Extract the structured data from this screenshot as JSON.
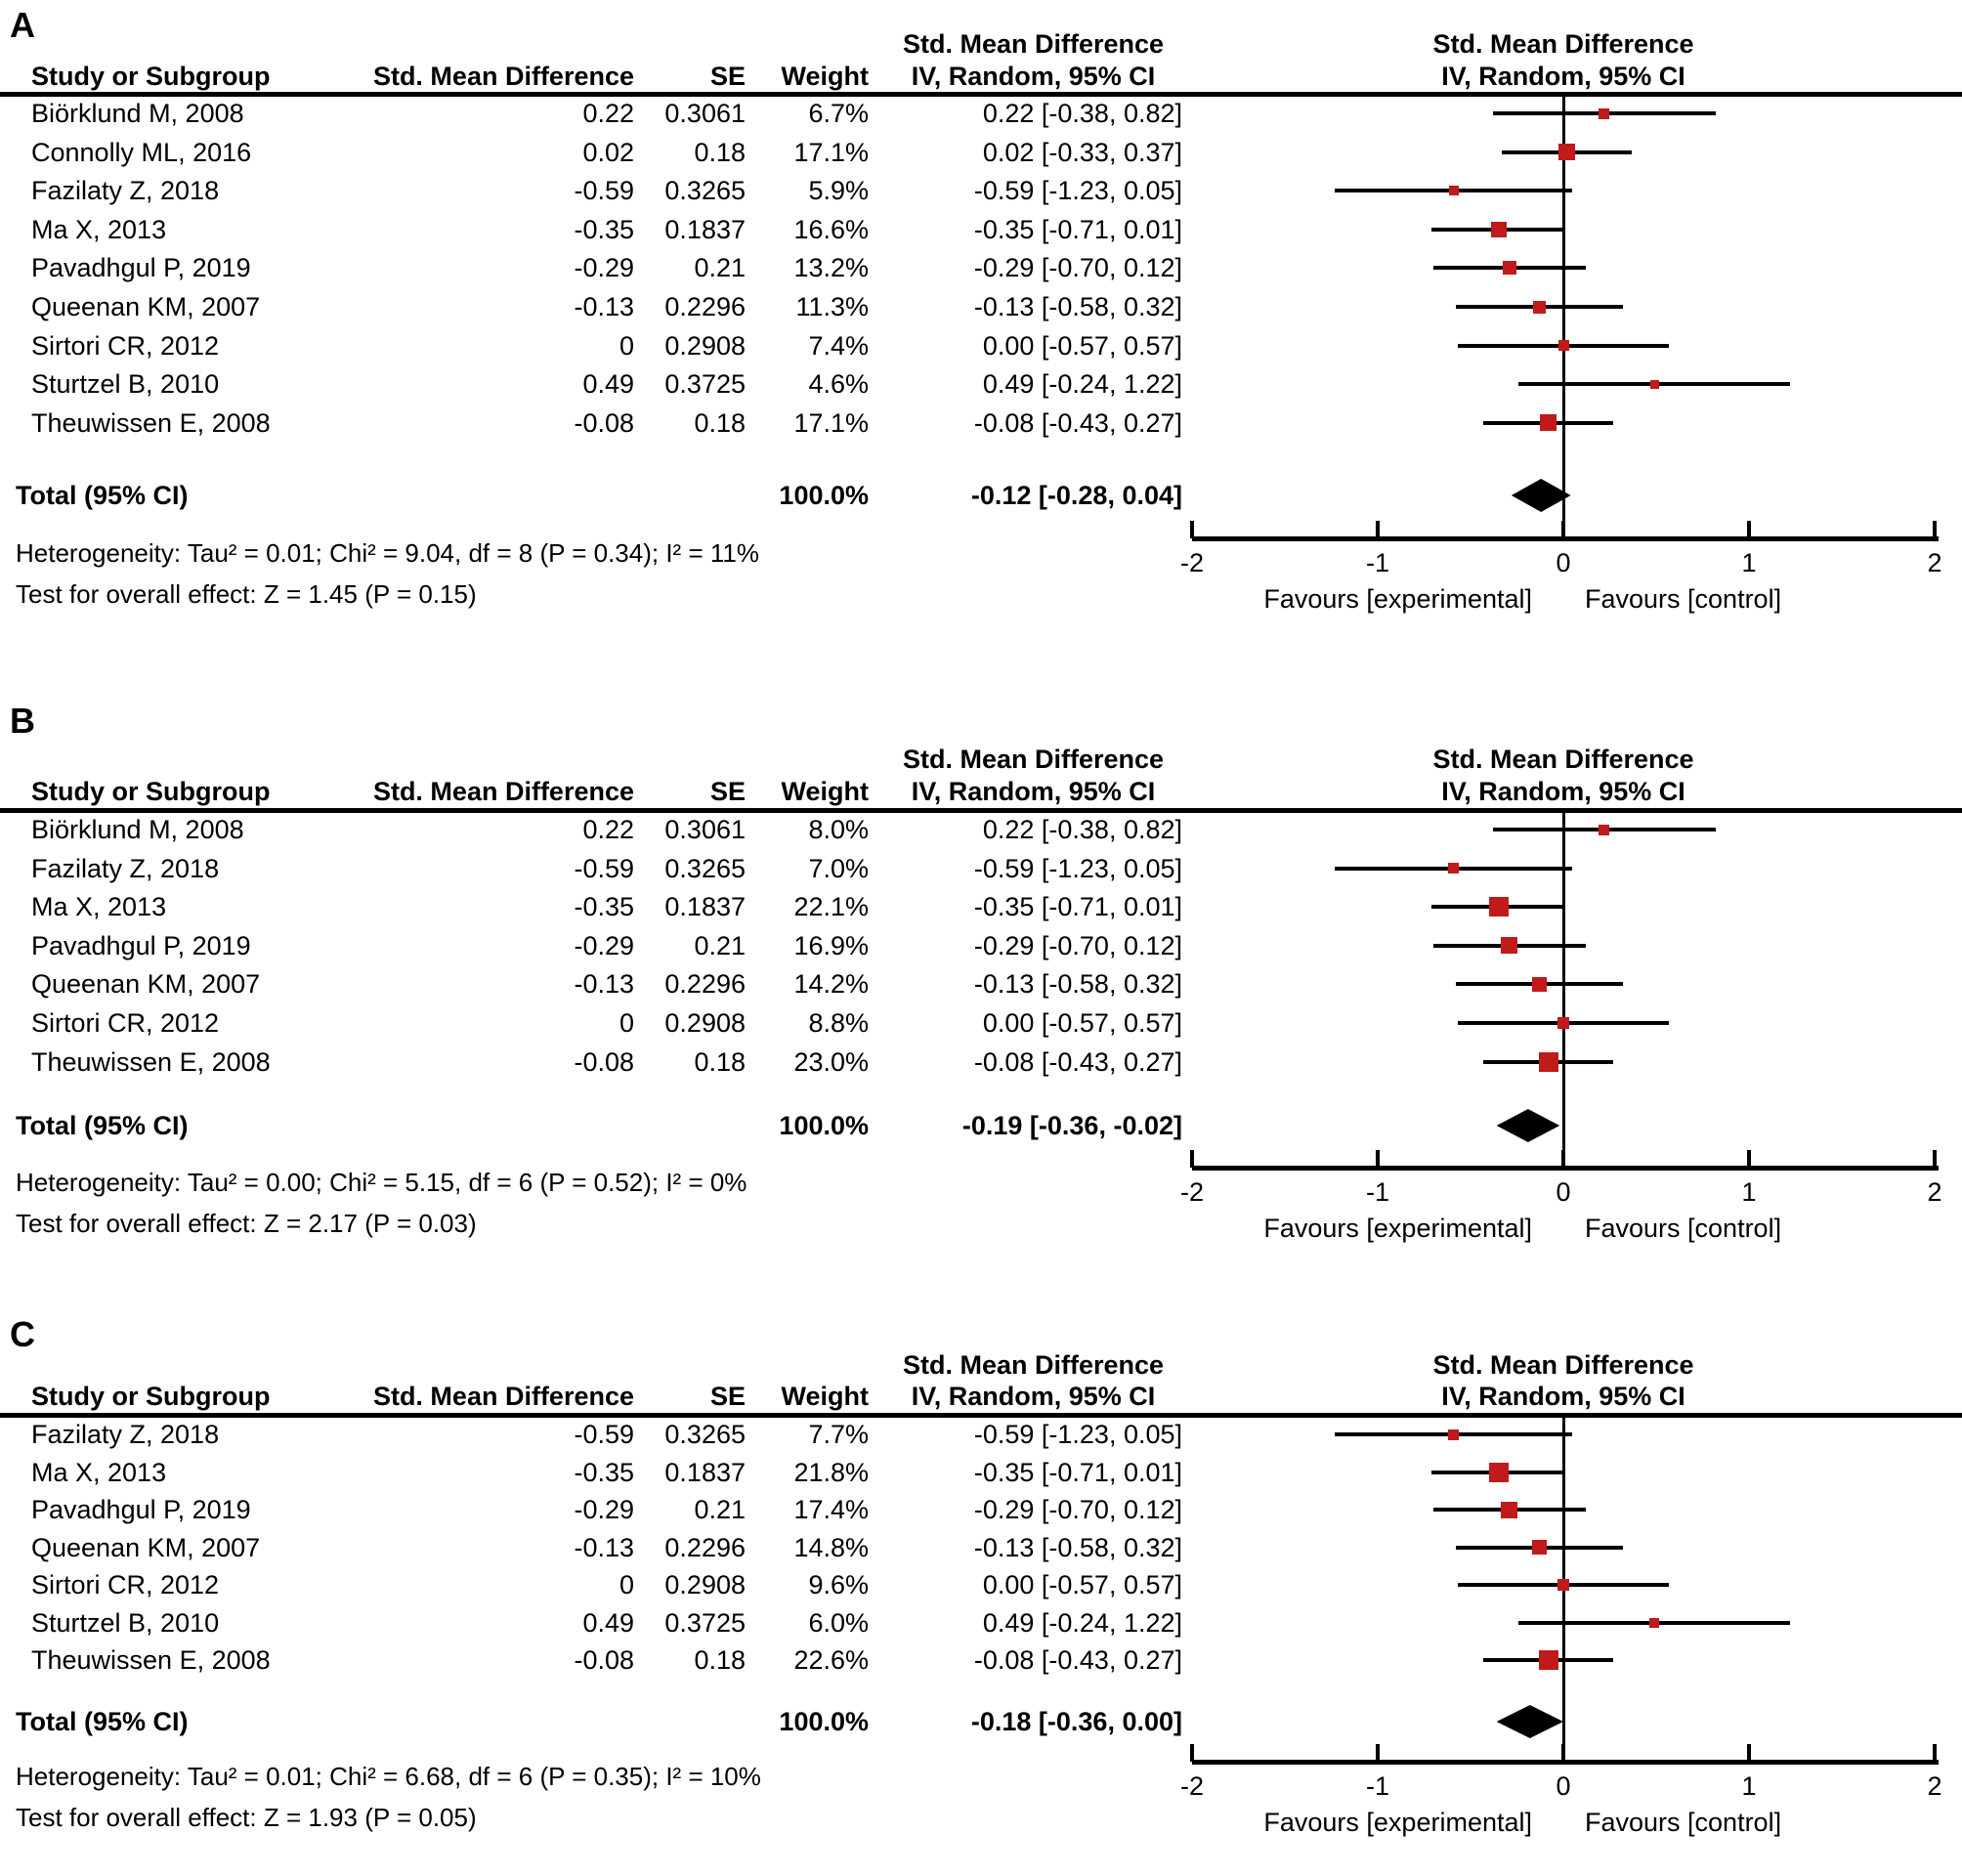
{
  "figure": {
    "marker_color": "#c01a1a",
    "summary_color": "#000000"
  },
  "chart_data": {
    "type": "forest",
    "x_axis": {
      "xlim": [
        -2,
        2
      ],
      "ticks": [
        -2,
        -1,
        0,
        1,
        2
      ],
      "tick_labels": [
        "-2",
        "-1",
        "0",
        "1",
        "2"
      ],
      "favours_left": "Favours [experimental]",
      "favours_right": "Favours [control]"
    },
    "columns": [
      "Study or Subgroup",
      "Std. Mean Difference",
      "SE",
      "Weight",
      "IV, Random, 95% CI"
    ],
    "graph_header_line1": "Std. Mean Difference",
    "graph_header_line2": "IV, Random, 95% CI",
    "panels": [
      {
        "label": "A",
        "studies": [
          {
            "name": "Biörklund M, 2008",
            "smd": "0.22",
            "se": "0.3061",
            "weight": "6.7%",
            "weight_pct": 6.7,
            "ci_text": "0.22 [-0.38, 0.82]",
            "est": 0.22,
            "lower": -0.38,
            "upper": 0.82
          },
          {
            "name": "Connolly ML, 2016",
            "smd": "0.02",
            "se": "0.18",
            "weight": "17.1%",
            "weight_pct": 17.1,
            "ci_text": "0.02 [-0.33, 0.37]",
            "est": 0.02,
            "lower": -0.33,
            "upper": 0.37
          },
          {
            "name": "Fazilaty Z, 2018",
            "smd": "-0.59",
            "se": "0.3265",
            "weight": "5.9%",
            "weight_pct": 5.9,
            "ci_text": "-0.59 [-1.23, 0.05]",
            "est": -0.59,
            "lower": -1.23,
            "upper": 0.05
          },
          {
            "name": "Ma X, 2013",
            "smd": "-0.35",
            "se": "0.1837",
            "weight": "16.6%",
            "weight_pct": 16.6,
            "ci_text": "-0.35 [-0.71, 0.01]",
            "est": -0.35,
            "lower": -0.71,
            "upper": 0.01
          },
          {
            "name": "Pavadhgul P, 2019",
            "smd": "-0.29",
            "se": "0.21",
            "weight": "13.2%",
            "weight_pct": 13.2,
            "ci_text": "-0.29 [-0.70, 0.12]",
            "est": -0.29,
            "lower": -0.7,
            "upper": 0.12
          },
          {
            "name": "Queenan KM, 2007",
            "smd": "-0.13",
            "se": "0.2296",
            "weight": "11.3%",
            "weight_pct": 11.3,
            "ci_text": "-0.13 [-0.58, 0.32]",
            "est": -0.13,
            "lower": -0.58,
            "upper": 0.32
          },
          {
            "name": "Sirtori CR, 2012",
            "smd": "0",
            "se": "0.2908",
            "weight": "7.4%",
            "weight_pct": 7.4,
            "ci_text": "0.00 [-0.57, 0.57]",
            "est": 0.0,
            "lower": -0.57,
            "upper": 0.57
          },
          {
            "name": "Sturtzel B, 2010",
            "smd": "0.49",
            "se": "0.3725",
            "weight": "4.6%",
            "weight_pct": 4.6,
            "ci_text": "0.49 [-0.24, 1.22]",
            "est": 0.49,
            "lower": -0.24,
            "upper": 1.22
          },
          {
            "name": "Theuwissen E, 2008",
            "smd": "-0.08",
            "se": "0.18",
            "weight": "17.1%",
            "weight_pct": 17.1,
            "ci_text": "-0.08 [-0.43, 0.27]",
            "est": -0.08,
            "lower": -0.43,
            "upper": 0.27
          }
        ],
        "total": {
          "label": "Total (95% CI)",
          "weight": "100.0%",
          "ci_text": "-0.12 [-0.28, 0.04]",
          "est": -0.12,
          "lower": -0.28,
          "upper": 0.04
        },
        "heterogeneity": "Heterogeneity: Tau² = 0.01; Chi² = 9.04, df = 8 (P = 0.34); I² = 11%",
        "overall_test": "Test for overall effect: Z = 1.45 (P = 0.15)"
      },
      {
        "label": "B",
        "studies": [
          {
            "name": "Biörklund M, 2008",
            "smd": "0.22",
            "se": "0.3061",
            "weight": "8.0%",
            "weight_pct": 8.0,
            "ci_text": "0.22 [-0.38, 0.82]",
            "est": 0.22,
            "lower": -0.38,
            "upper": 0.82
          },
          {
            "name": "Fazilaty Z, 2018",
            "smd": "-0.59",
            "se": "0.3265",
            "weight": "7.0%",
            "weight_pct": 7.0,
            "ci_text": "-0.59 [-1.23, 0.05]",
            "est": -0.59,
            "lower": -1.23,
            "upper": 0.05
          },
          {
            "name": "Ma X, 2013",
            "smd": "-0.35",
            "se": "0.1837",
            "weight": "22.1%",
            "weight_pct": 22.1,
            "ci_text": "-0.35 [-0.71, 0.01]",
            "est": -0.35,
            "lower": -0.71,
            "upper": 0.01
          },
          {
            "name": "Pavadhgul P, 2019",
            "smd": "-0.29",
            "se": "0.21",
            "weight": "16.9%",
            "weight_pct": 16.9,
            "ci_text": "-0.29 [-0.70, 0.12]",
            "est": -0.29,
            "lower": -0.7,
            "upper": 0.12
          },
          {
            "name": "Queenan KM, 2007",
            "smd": "-0.13",
            "se": "0.2296",
            "weight": "14.2%",
            "weight_pct": 14.2,
            "ci_text": "-0.13 [-0.58, 0.32]",
            "est": -0.13,
            "lower": -0.58,
            "upper": 0.32
          },
          {
            "name": "Sirtori CR, 2012",
            "smd": "0",
            "se": "0.2908",
            "weight": "8.8%",
            "weight_pct": 8.8,
            "ci_text": "0.00 [-0.57, 0.57]",
            "est": 0.0,
            "lower": -0.57,
            "upper": 0.57
          },
          {
            "name": "Theuwissen E, 2008",
            "smd": "-0.08",
            "se": "0.18",
            "weight": "23.0%",
            "weight_pct": 23.0,
            "ci_text": "-0.08 [-0.43, 0.27]",
            "est": -0.08,
            "lower": -0.43,
            "upper": 0.27
          }
        ],
        "total": {
          "label": "Total (95% CI)",
          "weight": "100.0%",
          "ci_text": "-0.19 [-0.36, -0.02]",
          "est": -0.19,
          "lower": -0.36,
          "upper": -0.02
        },
        "heterogeneity": "Heterogeneity: Tau² = 0.00; Chi² = 5.15, df = 6 (P = 0.52); I² = 0%",
        "overall_test": "Test for overall effect: Z = 2.17 (P = 0.03)"
      },
      {
        "label": "C",
        "studies": [
          {
            "name": "Fazilaty Z, 2018",
            "smd": "-0.59",
            "se": "0.3265",
            "weight": "7.7%",
            "weight_pct": 7.7,
            "ci_text": "-0.59 [-1.23, 0.05]",
            "est": -0.59,
            "lower": -1.23,
            "upper": 0.05
          },
          {
            "name": "Ma X, 2013",
            "smd": "-0.35",
            "se": "0.1837",
            "weight": "21.8%",
            "weight_pct": 21.8,
            "ci_text": "-0.35 [-0.71, 0.01]",
            "est": -0.35,
            "lower": -0.71,
            "upper": 0.01
          },
          {
            "name": "Pavadhgul P, 2019",
            "smd": "-0.29",
            "se": "0.21",
            "weight": "17.4%",
            "weight_pct": 17.4,
            "ci_text": "-0.29 [-0.70, 0.12]",
            "est": -0.29,
            "lower": -0.7,
            "upper": 0.12
          },
          {
            "name": "Queenan KM, 2007",
            "smd": "-0.13",
            "se": "0.2296",
            "weight": "14.8%",
            "weight_pct": 14.8,
            "ci_text": "-0.13 [-0.58, 0.32]",
            "est": -0.13,
            "lower": -0.58,
            "upper": 0.32
          },
          {
            "name": "Sirtori CR, 2012",
            "smd": "0",
            "se": "0.2908",
            "weight": "9.6%",
            "weight_pct": 9.6,
            "ci_text": "0.00 [-0.57, 0.57]",
            "est": 0.0,
            "lower": -0.57,
            "upper": 0.57
          },
          {
            "name": "Sturtzel B, 2010",
            "smd": "0.49",
            "se": "0.3725",
            "weight": "6.0%",
            "weight_pct": 6.0,
            "ci_text": "0.49 [-0.24, 1.22]",
            "est": 0.49,
            "lower": -0.24,
            "upper": 1.22
          },
          {
            "name": "Theuwissen E, 2008",
            "smd": "-0.08",
            "se": "0.18",
            "weight": "22.6%",
            "weight_pct": 22.6,
            "ci_text": "-0.08 [-0.43, 0.27]",
            "est": -0.08,
            "lower": -0.43,
            "upper": 0.27
          }
        ],
        "total": {
          "label": "Total (95% CI)",
          "weight": "100.0%",
          "ci_text": "-0.18 [-0.36, 0.00]",
          "est": -0.18,
          "lower": -0.36,
          "upper": 0.0
        },
        "heterogeneity": "Heterogeneity: Tau² = 0.01; Chi² = 6.68, df = 6 (P = 0.35); I² = 10%",
        "overall_test": "Test for overall effect: Z = 1.93 (P = 0.05)"
      }
    ]
  }
}
